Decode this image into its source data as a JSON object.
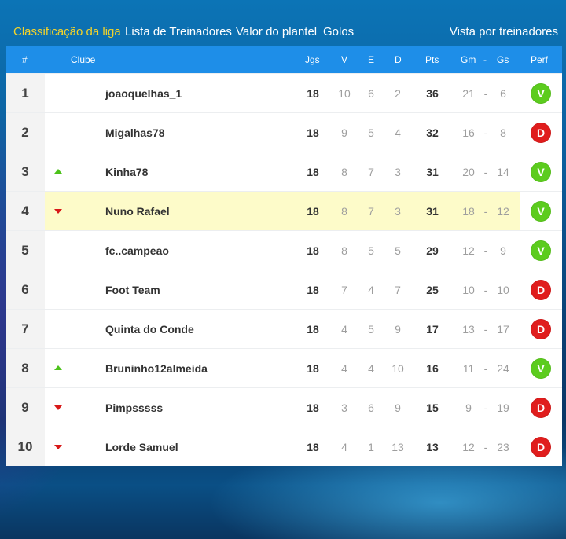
{
  "nav": {
    "tabs": [
      {
        "label": "Classificação da liga",
        "active": true
      },
      {
        "label": "Lista de Treinadores",
        "active": false
      },
      {
        "label": "Valor do plantel",
        "active": false
      },
      {
        "label": "Golos",
        "active": false
      }
    ],
    "right_link": "Vista por treinadores"
  },
  "table": {
    "headers": {
      "pos": "#",
      "club": "Clube",
      "jgs": "Jgs",
      "v": "V",
      "e": "E",
      "d": "D",
      "pts": "Pts",
      "gm": "Gm",
      "dash": "-",
      "gs": "Gs",
      "perf": "Perf"
    },
    "rows": [
      {
        "pos": "1",
        "name": "joaoquelhas_1",
        "trend": "none",
        "jgs": "18",
        "v": "10",
        "e": "6",
        "d": "2",
        "pts": "36",
        "gm": "21",
        "gs": "6",
        "perf": "V",
        "highlight": false
      },
      {
        "pos": "2",
        "name": "Migalhas78",
        "trend": "none",
        "jgs": "18",
        "v": "9",
        "e": "5",
        "d": "4",
        "pts": "32",
        "gm": "16",
        "gs": "8",
        "perf": "D",
        "highlight": false
      },
      {
        "pos": "3",
        "name": "Kinha78",
        "trend": "up",
        "jgs": "18",
        "v": "8",
        "e": "7",
        "d": "3",
        "pts": "31",
        "gm": "20",
        "gs": "14",
        "perf": "V",
        "highlight": false
      },
      {
        "pos": "4",
        "name": "Nuno Rafael",
        "trend": "down",
        "jgs": "18",
        "v": "8",
        "e": "7",
        "d": "3",
        "pts": "31",
        "gm": "18",
        "gs": "12",
        "perf": "V",
        "highlight": true
      },
      {
        "pos": "5",
        "name": "fc..campeao",
        "trend": "none",
        "jgs": "18",
        "v": "8",
        "e": "5",
        "d": "5",
        "pts": "29",
        "gm": "12",
        "gs": "9",
        "perf": "V",
        "highlight": false
      },
      {
        "pos": "6",
        "name": "Foot Team",
        "trend": "none",
        "jgs": "18",
        "v": "7",
        "e": "4",
        "d": "7",
        "pts": "25",
        "gm": "10",
        "gs": "10",
        "perf": "D",
        "highlight": false
      },
      {
        "pos": "7",
        "name": "Quinta do Conde",
        "trend": "none",
        "jgs": "18",
        "v": "4",
        "e": "5",
        "d": "9",
        "pts": "17",
        "gm": "13",
        "gs": "17",
        "perf": "D",
        "highlight": false
      },
      {
        "pos": "8",
        "name": "Bruninho12almeida",
        "trend": "up",
        "jgs": "18",
        "v": "4",
        "e": "4",
        "d": "10",
        "pts": "16",
        "gm": "11",
        "gs": "24",
        "perf": "V",
        "highlight": false
      },
      {
        "pos": "9",
        "name": "Pimpsssss",
        "trend": "down",
        "jgs": "18",
        "v": "3",
        "e": "6",
        "d": "9",
        "pts": "15",
        "gm": "9",
        "gs": "19",
        "perf": "D",
        "highlight": false
      },
      {
        "pos": "10",
        "name": "Lorde Samuel",
        "trend": "down",
        "jgs": "18",
        "v": "4",
        "e": "1",
        "d": "13",
        "pts": "13",
        "gm": "12",
        "gs": "23",
        "perf": "D",
        "highlight": false
      }
    ]
  },
  "colors": {
    "active_tab": "#f3d32a",
    "header_bg": "#1e8ee8",
    "highlight_row": "#fdfbc9",
    "win": "#5ccc1e",
    "loss": "#e01d1d",
    "trend_up": "#4cc21a",
    "trend_down": "#d81818"
  }
}
